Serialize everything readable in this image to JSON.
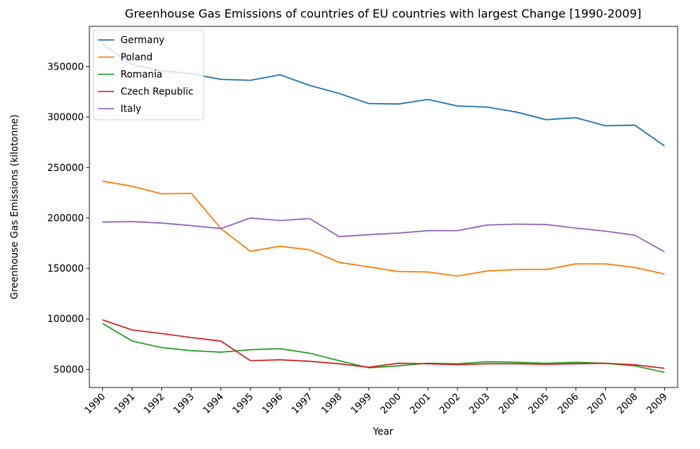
{
  "chart_data": {
    "type": "line",
    "title": "Greenhouse Gas Emissions of countries of EU countries with largest Change [1990-2009]",
    "xlabel": "Year",
    "ylabel": "Greenhouse Gas Emissions (kilotonne)",
    "categories": [
      "1990",
      "1991",
      "1992",
      "1993",
      "1994",
      "1995",
      "1996",
      "1997",
      "1998",
      "1999",
      "2000",
      "2001",
      "2002",
      "2003",
      "2004",
      "2005",
      "2006",
      "2007",
      "2008",
      "2009"
    ],
    "yticks": [
      "50000",
      "100000",
      "150000",
      "200000",
      "250000",
      "300000",
      "350000"
    ],
    "ylim": [
      32000,
      390000
    ],
    "grid": false,
    "legend_position": "top-left",
    "series": [
      {
        "name": "Germany",
        "color": "#1f77b4",
        "values": [
          372500,
          352000,
          346000,
          343000,
          337500,
          336500,
          342000,
          331500,
          323500,
          313500,
          313000,
          317500,
          311000,
          310000,
          305000,
          297500,
          299500,
          291500,
          292000,
          271500
        ]
      },
      {
        "name": "Poland",
        "color": "#ff7f0e",
        "values": [
          236500,
          231500,
          224000,
          224500,
          189500,
          167000,
          172000,
          168500,
          156000,
          151500,
          147000,
          146500,
          142500,
          147500,
          149000,
          149000,
          154500,
          154500,
          151000,
          144500
        ]
      },
      {
        "name": "Romania",
        "color": "#2ca02c",
        "values": [
          95500,
          78000,
          71500,
          68500,
          67000,
          69500,
          70500,
          66000,
          58500,
          51500,
          53500,
          56000,
          55500,
          57500,
          57000,
          56000,
          57000,
          56000,
          53500,
          47000
        ]
      },
      {
        "name": "Czech Republic",
        "color": "#d62728",
        "values": [
          99000,
          89000,
          85500,
          81500,
          78000,
          58500,
          59500,
          58000,
          55500,
          52000,
          56000,
          55500,
          54500,
          55500,
          55500,
          55000,
          55500,
          56000,
          54500,
          51000
        ]
      },
      {
        "name": "Italy",
        "color": "#9467bd",
        "values": [
          196000,
          196500,
          195000,
          192500,
          189500,
          200000,
          197500,
          199500,
          181500,
          183500,
          185000,
          187500,
          187500,
          193000,
          194000,
          193500,
          190000,
          187000,
          183000,
          166500
        ]
      }
    ]
  }
}
